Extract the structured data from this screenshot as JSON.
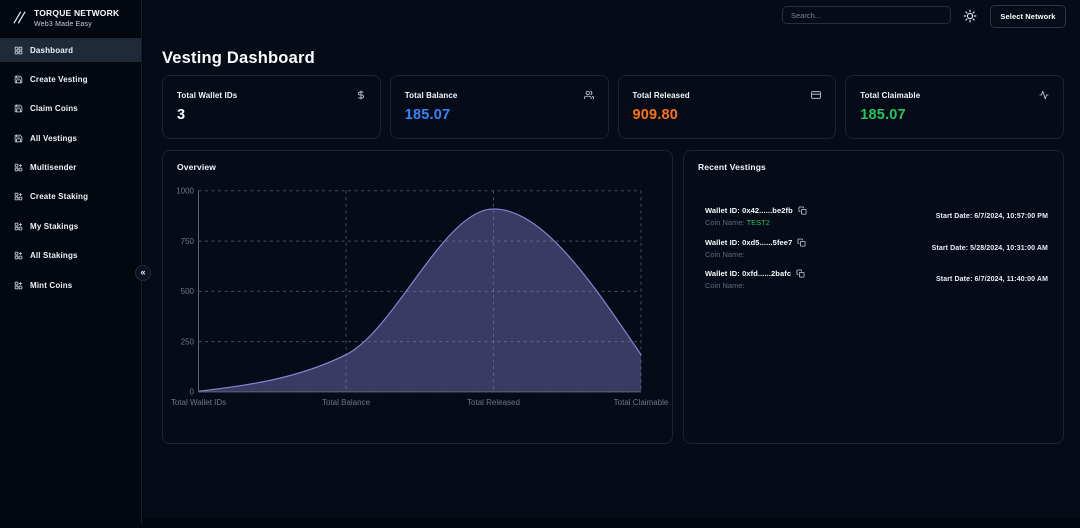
{
  "brand": {
    "title": "TORQUE NETWORK",
    "subtitle": "Web3 Made Easy"
  },
  "sidebar": {
    "items": [
      {
        "label": "Dashboard",
        "icon": "dashboard-icon",
        "active": true
      },
      {
        "label": "Create Vesting",
        "icon": "save-icon",
        "active": false
      },
      {
        "label": "Claim Coins",
        "icon": "save-icon",
        "active": false
      },
      {
        "label": "All Vestings",
        "icon": "save-icon",
        "active": false
      },
      {
        "label": "Multisender",
        "icon": "grid-plus-icon",
        "active": false
      },
      {
        "label": "Create Staking",
        "icon": "grid-plus-icon",
        "active": false
      },
      {
        "label": "My Stakings",
        "icon": "grid-plus-icon",
        "active": false
      },
      {
        "label": "All Stakings",
        "icon": "grid-plus-icon",
        "active": false
      },
      {
        "label": "Mint Coins",
        "icon": "grid-plus-icon",
        "active": false
      }
    ],
    "collapse_glyph": "«"
  },
  "topbar": {
    "search_placeholder": "Search...",
    "theme_icon": "sun-icon",
    "network_button": "Select Network"
  },
  "page": {
    "title": "Vesting Dashboard"
  },
  "stats": [
    {
      "label": "Total Wallet IDs",
      "value": "3",
      "color": "#fbfcfe",
      "icon": "dollar-icon"
    },
    {
      "label": "Total Balance",
      "value": "185.07",
      "color": "#3b82f6",
      "icon": "users-icon"
    },
    {
      "label": "Total Released",
      "value": "909.80",
      "color": "#f97316",
      "icon": "credit-card-icon"
    },
    {
      "label": "Total Claimable",
      "value": "185.07",
      "color": "#22c55e",
      "icon": "activity-icon"
    }
  ],
  "chart_data": {
    "type": "area",
    "title": "Overview",
    "categories": [
      "Total Wallet IDs",
      "Total Balance",
      "Total Released",
      "Total Claimable"
    ],
    "values": [
      3,
      185.07,
      909.8,
      185.07
    ],
    "yticks": [
      0,
      250,
      500,
      750,
      1000
    ],
    "ylim": [
      0,
      1000
    ],
    "grid": "dashed",
    "legend": "none",
    "fill": "#8884d8",
    "fill_opacity": 0.4,
    "stroke": "#8884d8",
    "axis_color": "#5a6372",
    "tick_color": "#6e7687"
  },
  "recent": {
    "title": "Recent Vestings",
    "items": [
      {
        "wallet": "Wallet ID: 0x42......be2fb",
        "coin_label": "Coin Name:",
        "coin_name": "TEST2",
        "date": "Start Date: 6/7/2024, 10:57:00 PM"
      },
      {
        "wallet": "Wallet ID: 0xd5......5fee7",
        "coin_label": "Coin Name:",
        "coin_name": "",
        "date": "Start Date: 5/28/2024, 10:31:00 AM"
      },
      {
        "wallet": "Wallet ID: 0xfd......2bafc",
        "coin_label": "Coin Name:",
        "coin_name": "",
        "date": "Start Date: 6/7/2024, 11:40:00 AM"
      }
    ]
  }
}
